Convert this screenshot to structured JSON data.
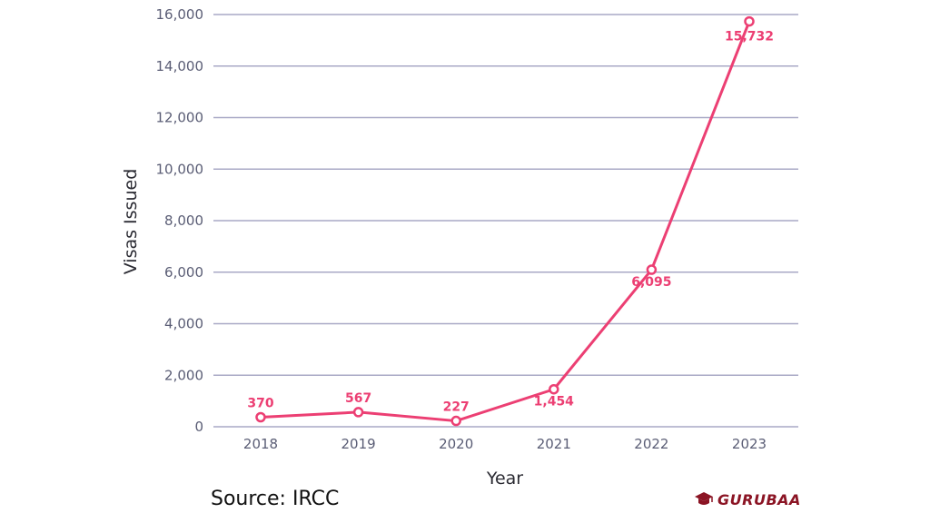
{
  "chart_data": {
    "type": "line",
    "title": "",
    "xlabel": "Year",
    "ylabel": "Visas Issued",
    "categories": [
      "2018",
      "2019",
      "2020",
      "2021",
      "2022",
      "2023"
    ],
    "values": [
      370,
      567,
      227,
      1454,
      6095,
      15732
    ],
    "value_labels": [
      "370",
      "567",
      "227",
      "1,454",
      "6,095",
      "15,732"
    ],
    "y_ticks": [
      0,
      2000,
      4000,
      6000,
      8000,
      10000,
      12000,
      14000,
      16000
    ],
    "y_tick_labels": [
      "0",
      "2,000",
      "4,000",
      "6,000",
      "8,000",
      "10,000",
      "12,000",
      "14,000",
      "16,000"
    ],
    "ylim": [
      0,
      16000
    ],
    "grid": "horizontal",
    "line_color": "#ec3f73",
    "grid_color": "#a9a9c6",
    "tick_color": "#5a5d75"
  },
  "source": "Source: IRCC",
  "brand": {
    "name": "GURUBAA",
    "icon": "graduation-cap-icon",
    "color": "#8b1424"
  }
}
